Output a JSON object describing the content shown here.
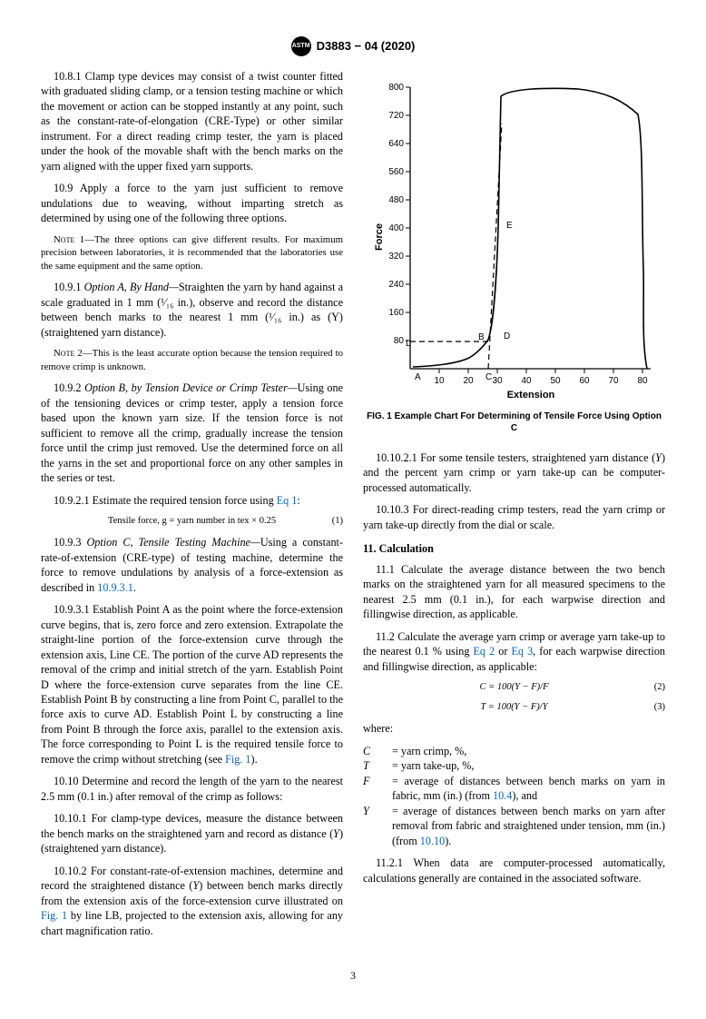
{
  "header": {
    "doc_id": "D3883 − 04 (2020)"
  },
  "left": {
    "p1": "10.8.1 Clamp type devices may consist of a twist counter fitted with graduated sliding clamp, or a tension testing machine or which the movement or action can be stopped instantly at any point, such as the constant-rate-of-elongation (CRE-Type) or other similar instrument. For a direct reading crimp tester, the yarn is placed under the hook of the movable shaft with the bench marks on the yarn aligned with the upper fixed yarn supports.",
    "p2": "10.9 Apply a force to the yarn just sufficient to remove undulations due to weaving, without imparting stretch as determined by using one of the following three options.",
    "note1_label": "Note 1—",
    "note1": "The three options can give different results. For maximum precision between laboratories, it is recommended that the laboratories use the same equipment and the same option.",
    "p3_pre": "10.9.1 ",
    "p3_title": "Option A, By Hand—",
    "p3_body": "Straighten the yarn by hand against a scale graduated in 1 mm (¹⁄₁₆ in.), observe and record the distance between bench marks to the nearest 1 mm (¹⁄₁₆ in.) as (Y) (straightened yarn distance).",
    "note2_label": "Note 2—",
    "note2": "This is the least accurate option because the tension required to remove crimp is unknown.",
    "p4_pre": "10.9.2 ",
    "p4_title": "Option B, by Tension Device or Crimp Tester—",
    "p4_body": "Using one of the tensioning devices or crimp tester, apply a tension force based upon the known yarn size. If the tension force is not sufficient to remove all the crimp, gradually increase the tension force until the crimp just removed. Use the determined force on all the yarns in the set and proportional force on any other samples in the series or test.",
    "p5a": "10.9.2.1 Estimate the required tension force using ",
    "p5_ref": "Eq 1",
    "p5b": ":",
    "eq1": "Tensile force, g = yarn number in tex × 0.25",
    "eq1_num": "(1)",
    "p6_pre": "10.9.3 ",
    "p6_title": "Option C, Tensile Testing Machine—",
    "p6_body_a": "Using a constant-rate-of-extension (CRE-type) of testing machine, determine the force to remove undulations by analysis of a force-extension as described in ",
    "p6_ref": "10.9.3.1",
    "p6_body_b": ".",
    "p7a": "10.9.3.1 Establish Point A as the point where the force-extension curve begins, that is, zero force and zero extension. Extrapolate the straight-line portion of the force-extension curve through the extension axis, Line CE. The portion of the curve AD represents the removal of the crimp and initial stretch of the yarn. Establish Point D where the force-extension curve separates from the line CE. Establish Point B by constructing a line from Point C, parallel to the force axis to curve AD. Establish Point L by constructing a line from Point B through the force axis, parallel to the extension axis. The force corresponding to Point L is the required tensile force to remove the crimp without stretching (see ",
    "p7_ref": "Fig. 1",
    "p7b": ").",
    "p8": "10.10 Determine and record the length of the yarn to the nearest 2.5 mm (0.1 in.) after removal of the crimp as follows:",
    "p9pre": "10.10.1 For clamp-type devices, measure the distance between the bench marks on the straightened yarn and record as distance (",
    "p9post": ") (straightened yarn distance).",
    "p10pre": "10.10.2 For constant-rate-of-extension machines, determine and record the straightened distance (",
    "p10post": ") between bench marks directly from the extension axis of the force-extension curve illustrated on ",
    "p10_ref": "Fig. 1",
    "p10tail": " by line LB, projected to the extension axis, allowing for any chart magnification ratio.",
    "Y": "Y"
  },
  "right": {
    "chart": {
      "y_ticks": [
        "80",
        "160",
        "240",
        "320",
        "400",
        "480",
        "560",
        "640",
        "720",
        "800"
      ],
      "x_ticks": [
        "10",
        "20",
        "30",
        "40",
        "50",
        "60",
        "70",
        "80"
      ],
      "y_label": "Force",
      "x_label": "Extension",
      "marks": {
        "A": "A",
        "B": "B",
        "C": "C",
        "D": "D",
        "E": "E",
        "L": "L"
      }
    },
    "fig_caption": "FIG. 1 Example Chart For Determining of Tensile Force Using Option C",
    "p1pre": "10.10.2.1 For some tensile testers, straightened yarn distance (",
    "p1post": ") and the percent yarn crimp or yarn take-up can be computer-processed automatically.",
    "Y": "Y",
    "p2": "10.10.3 For direct-reading crimp testers, read the yarn crimp or yarn take-up directly from the dial or scale.",
    "sec11": "11. Calculation",
    "p3": "11.1 Calculate the average distance between the two bench marks on the straightened yarn for all measured specimens to the nearest 2.5 mm (0.1 in.), for each warpwise direction and fillingwise direction, as applicable.",
    "p4a": "11.2 Calculate the average yarn crimp or average yarn take-up to the nearest 0.1 % using ",
    "p4_ref1": "Eq 2",
    "p4b": " or ",
    "p4_ref2": "Eq 3",
    "p4c": ", for each warpwise direction and fillingwise direction, as applicable:",
    "eq2": "C = 100(Y − F)/F",
    "eq2_num": "(2)",
    "eq3": "T = 100(Y − F)/Y",
    "eq3_num": "(3)",
    "where": "where:",
    "whereC": "= yarn crimp, %,",
    "whereT": "= yarn take-up, %,",
    "whereF_a": "= average of distances between bench marks on yarn in fabric, mm (in.) (from ",
    "whereF_ref": "10.4",
    "whereF_b": "), and",
    "whereY_a": "= average of distances between bench marks on yarn after removal from fabric and straightened under tension, mm (in.) (from ",
    "whereY_ref": "10.10",
    "whereY_b": ").",
    "p5": "11.2.1 When data are computer-processed automatically, calculations generally are contained in the associated software."
  },
  "page_num": "3"
}
